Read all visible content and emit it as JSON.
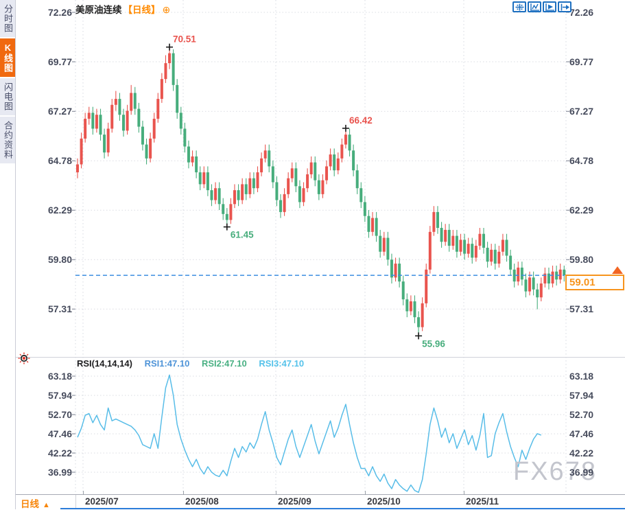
{
  "header": {
    "symbol": "美原油连续",
    "timeframe_tag": "【日线】",
    "add_icon": "⊕"
  },
  "sidebar": {
    "items": [
      {
        "label": "分时图",
        "active": false
      },
      {
        "label": "K线图",
        "active": true
      },
      {
        "label": "闪电图",
        "active": false
      },
      {
        "label": "合约资料",
        "active": false
      }
    ],
    "active_color": "#f0690f"
  },
  "toolbar": {
    "icons": [
      "crosshair-move-icon",
      "range-stats-icon",
      "range-play-icon",
      "export-forward-icon"
    ],
    "accent": "#1d6fc0"
  },
  "price_tag": {
    "value": "59.01",
    "color": "#f7941d"
  },
  "watermark": "FX678",
  "bottom_bar": {
    "timeframe": "日线",
    "arrow": "▲"
  },
  "rsi_panel": {
    "title": "RSI(14,14,14)",
    "legend": [
      {
        "label": "RSI1:47.10",
        "color": "#4f94d8"
      },
      {
        "label": "RSI2:47.10",
        "color": "#49b083"
      },
      {
        "label": "RSI3:47.10",
        "color": "#55c2ea"
      }
    ]
  },
  "chart_data": [
    {
      "type": "candlestick",
      "title": "美原油连续【日线】",
      "y_ticks": [
        72.26,
        69.77,
        67.27,
        64.78,
        62.29,
        59.8,
        57.31
      ],
      "x_labels": [
        "2025/07",
        "2025/08",
        "2025/09",
        "2025/10",
        "2025/11"
      ],
      "up_color": "#e9544e",
      "down_color": "#47ad7c",
      "current_price": 59.01,
      "current_price_line_color": "#3b8de0",
      "markers": [
        {
          "label": "70.51",
          "value": 70.51,
          "index": 24,
          "kind": "high"
        },
        {
          "label": "61.45",
          "value": 61.45,
          "index": 39,
          "kind": "low"
        },
        {
          "label": "66.42",
          "value": 66.42,
          "index": 70,
          "kind": "high"
        },
        {
          "label": "55.96",
          "value": 55.96,
          "index": 89,
          "kind": "low"
        }
      ],
      "ohlc": [
        [
          64.2,
          64.9,
          63.9,
          64.6
        ],
        [
          64.6,
          66.2,
          64.4,
          65.9
        ],
        [
          65.9,
          67.2,
          65.7,
          66.9
        ],
        [
          66.9,
          67.5,
          66.6,
          67.2
        ],
        [
          67.2,
          67.5,
          66.1,
          66.4
        ],
        [
          66.4,
          67.4,
          66.2,
          67.1
        ],
        [
          67.1,
          67.4,
          65.8,
          66.1
        ],
        [
          66.1,
          66.4,
          64.9,
          65.2
        ],
        [
          65.2,
          66.7,
          65.0,
          66.4
        ],
        [
          66.4,
          67.9,
          66.2,
          67.6
        ],
        [
          67.6,
          68.3,
          67.3,
          67.9
        ],
        [
          67.9,
          68.2,
          66.8,
          67.1
        ],
        [
          67.1,
          67.4,
          66.0,
          66.3
        ],
        [
          66.3,
          67.6,
          66.1,
          67.3
        ],
        [
          67.3,
          68.6,
          67.1,
          68.2
        ],
        [
          68.2,
          68.5,
          67.1,
          67.4
        ],
        [
          67.4,
          67.7,
          66.2,
          66.5
        ],
        [
          66.5,
          66.8,
          65.3,
          65.6
        ],
        [
          65.6,
          65.9,
          64.6,
          64.9
        ],
        [
          64.9,
          66.2,
          64.7,
          65.9
        ],
        [
          65.9,
          67.2,
          65.7,
          66.9
        ],
        [
          66.9,
          68.2,
          66.7,
          67.9
        ],
        [
          67.9,
          69.2,
          67.7,
          68.9
        ],
        [
          68.9,
          70.1,
          68.7,
          69.7
        ],
        [
          69.7,
          70.51,
          69.4,
          70.2
        ],
        [
          70.2,
          70.4,
          68.3,
          68.6
        ],
        [
          68.6,
          68.9,
          66.9,
          67.2
        ],
        [
          67.2,
          67.5,
          66.1,
          66.4
        ],
        [
          66.4,
          66.7,
          65.2,
          65.5
        ],
        [
          65.5,
          65.8,
          64.4,
          64.7
        ],
        [
          64.7,
          65.3,
          64.5,
          65.0
        ],
        [
          65.0,
          65.3,
          63.9,
          64.2
        ],
        [
          64.2,
          64.5,
          63.3,
          63.6
        ],
        [
          63.6,
          64.5,
          63.4,
          64.2
        ],
        [
          64.2,
          64.5,
          63.0,
          63.3
        ],
        [
          63.3,
          63.6,
          62.5,
          62.8
        ],
        [
          62.8,
          63.7,
          62.6,
          63.4
        ],
        [
          63.4,
          63.7,
          62.3,
          62.6
        ],
        [
          62.6,
          62.9,
          61.8,
          62.1
        ],
        [
          62.1,
          62.4,
          61.45,
          61.8
        ],
        [
          61.8,
          62.9,
          61.6,
          62.6
        ],
        [
          62.6,
          63.6,
          62.4,
          63.3
        ],
        [
          63.3,
          63.6,
          62.5,
          62.8
        ],
        [
          62.8,
          63.9,
          62.6,
          63.6
        ],
        [
          63.6,
          63.9,
          62.8,
          63.1
        ],
        [
          63.1,
          64.2,
          62.9,
          63.9
        ],
        [
          63.9,
          64.2,
          63.1,
          63.4
        ],
        [
          63.4,
          64.5,
          63.2,
          64.2
        ],
        [
          64.2,
          65.2,
          64.0,
          64.9
        ],
        [
          64.9,
          65.6,
          64.7,
          65.3
        ],
        [
          65.3,
          65.6,
          64.2,
          64.5
        ],
        [
          64.5,
          64.8,
          63.4,
          63.7
        ],
        [
          63.7,
          64.0,
          62.5,
          62.8
        ],
        [
          62.8,
          63.1,
          61.9,
          62.2
        ],
        [
          62.2,
          63.4,
          62.0,
          63.1
        ],
        [
          63.1,
          64.2,
          62.9,
          63.9
        ],
        [
          63.9,
          64.7,
          63.7,
          64.4
        ],
        [
          64.4,
          64.7,
          63.2,
          63.5
        ],
        [
          63.5,
          63.8,
          62.4,
          62.7
        ],
        [
          62.7,
          63.7,
          62.5,
          63.4
        ],
        [
          63.4,
          64.4,
          63.2,
          64.1
        ],
        [
          64.1,
          65.0,
          63.9,
          64.7
        ],
        [
          64.7,
          65.0,
          63.5,
          63.8
        ],
        [
          63.8,
          64.1,
          62.8,
          63.1
        ],
        [
          63.1,
          64.1,
          62.9,
          63.8
        ],
        [
          63.8,
          64.8,
          63.6,
          64.5
        ],
        [
          64.5,
          65.4,
          64.3,
          65.1
        ],
        [
          65.1,
          65.4,
          64.0,
          64.3
        ],
        [
          64.3,
          65.2,
          64.1,
          64.9
        ],
        [
          64.9,
          65.9,
          64.7,
          65.6
        ],
        [
          65.6,
          66.42,
          65.4,
          66.1
        ],
        [
          66.1,
          66.4,
          65.0,
          65.3
        ],
        [
          65.3,
          65.6,
          64.0,
          64.3
        ],
        [
          64.3,
          64.6,
          63.1,
          63.4
        ],
        [
          63.4,
          63.7,
          62.4,
          62.7
        ],
        [
          62.7,
          63.0,
          61.7,
          62.0
        ],
        [
          62.0,
          62.3,
          60.9,
          61.2
        ],
        [
          61.2,
          62.2,
          61.0,
          61.9
        ],
        [
          61.9,
          62.2,
          60.7,
          61.0
        ],
        [
          61.0,
          61.3,
          59.9,
          60.2
        ],
        [
          60.2,
          61.2,
          60.0,
          60.9
        ],
        [
          60.9,
          61.2,
          59.5,
          59.8
        ],
        [
          59.8,
          60.1,
          58.6,
          58.9
        ],
        [
          58.9,
          59.9,
          58.7,
          59.6
        ],
        [
          59.6,
          59.9,
          58.4,
          58.7
        ],
        [
          58.7,
          59.0,
          57.5,
          57.8
        ],
        [
          57.8,
          58.1,
          56.9,
          57.2
        ],
        [
          57.2,
          58.0,
          57.0,
          57.7
        ],
        [
          57.7,
          58.0,
          56.6,
          56.9
        ],
        [
          56.9,
          57.2,
          55.96,
          56.4
        ],
        [
          56.4,
          57.9,
          56.2,
          57.6
        ],
        [
          57.6,
          59.6,
          57.4,
          59.3
        ],
        [
          59.3,
          61.5,
          59.1,
          61.2
        ],
        [
          61.2,
          62.5,
          61.0,
          62.2
        ],
        [
          62.2,
          62.5,
          61.1,
          61.4
        ],
        [
          61.4,
          61.7,
          60.4,
          60.7
        ],
        [
          60.7,
          61.6,
          60.5,
          61.3
        ],
        [
          61.3,
          61.6,
          60.2,
          60.5
        ],
        [
          60.5,
          61.3,
          60.3,
          61.0
        ],
        [
          61.0,
          61.3,
          59.9,
          60.2
        ],
        [
          60.2,
          61.1,
          60.0,
          60.8
        ],
        [
          60.8,
          61.1,
          59.8,
          60.1
        ],
        [
          60.1,
          60.9,
          59.9,
          60.6
        ],
        [
          60.6,
          60.9,
          59.6,
          59.9
        ],
        [
          59.9,
          60.8,
          59.7,
          60.5
        ],
        [
          60.5,
          61.4,
          60.3,
          61.1
        ],
        [
          61.1,
          61.4,
          60.1,
          60.4
        ],
        [
          60.4,
          60.7,
          59.4,
          59.7
        ],
        [
          59.7,
          60.6,
          59.5,
          60.3
        ],
        [
          60.3,
          60.6,
          59.3,
          59.6
        ],
        [
          59.6,
          60.5,
          59.4,
          60.2
        ],
        [
          60.2,
          61.1,
          60.0,
          60.8
        ],
        [
          60.8,
          61.1,
          59.7,
          60.0
        ],
        [
          60.0,
          60.3,
          59.0,
          59.3
        ],
        [
          59.3,
          59.6,
          58.4,
          58.7
        ],
        [
          58.7,
          59.7,
          58.5,
          59.4
        ],
        [
          59.4,
          59.7,
          58.5,
          58.8
        ],
        [
          58.8,
          59.1,
          57.9,
          58.2
        ],
        [
          58.2,
          59.2,
          58.0,
          58.9
        ],
        [
          58.9,
          59.2,
          58.0,
          58.3
        ],
        [
          58.3,
          58.6,
          57.3,
          57.9
        ],
        [
          57.9,
          58.9,
          57.7,
          58.6
        ],
        [
          58.6,
          59.4,
          58.4,
          59.1
        ],
        [
          59.1,
          59.4,
          58.3,
          58.6
        ],
        [
          58.6,
          59.5,
          58.4,
          59.2
        ],
        [
          59.2,
          59.5,
          58.5,
          58.8
        ],
        [
          58.8,
          59.6,
          58.6,
          59.3
        ],
        [
          59.3,
          59.5,
          58.7,
          59.01
        ]
      ]
    },
    {
      "type": "line",
      "title": "RSI(14,14,14)",
      "y_ticks": [
        63.18,
        57.94,
        52.7,
        47.46,
        42.22,
        36.99
      ],
      "line_color": "#58bde8",
      "series": [
        {
          "name": "RSI1",
          "current": 47.1
        },
        {
          "name": "RSI2",
          "current": 47.1
        },
        {
          "name": "RSI3",
          "current": 47.1
        }
      ],
      "values": [
        46.5,
        49,
        52.5,
        53,
        50.5,
        52.5,
        50,
        48.5,
        54.5,
        51,
        51.5,
        51,
        50.5,
        50,
        49.5,
        48.5,
        47,
        44.5,
        44,
        43.5,
        47.5,
        43.5,
        52,
        60,
        63.5,
        58,
        50,
        46,
        43,
        40.5,
        38.5,
        40.5,
        38,
        36.5,
        38.5,
        37,
        36.2,
        35.8,
        37.5,
        36,
        40,
        43.5,
        41,
        44,
        42.5,
        45,
        43.5,
        46,
        50,
        53.5,
        48.5,
        45,
        41,
        39,
        42.5,
        46,
        48.5,
        44,
        41,
        44,
        47,
        50,
        45.5,
        42,
        45,
        48,
        51,
        46.5,
        49,
        52.5,
        55.5,
        50,
        45,
        41,
        38,
        38,
        36,
        38.5,
        36,
        34.5,
        36.5,
        34,
        32.5,
        35,
        33.5,
        32.5,
        31.8,
        33.5,
        32,
        31.5,
        35,
        42,
        50,
        54.5,
        51,
        46.5,
        49,
        45,
        47.5,
        43.5,
        46,
        48.5,
        44.5,
        47,
        43,
        47,
        53,
        41,
        41.5,
        47.5,
        50.5,
        53,
        48,
        44,
        41,
        38.5,
        43,
        40.5,
        43.5,
        46,
        47.5,
        47.1
      ]
    }
  ]
}
